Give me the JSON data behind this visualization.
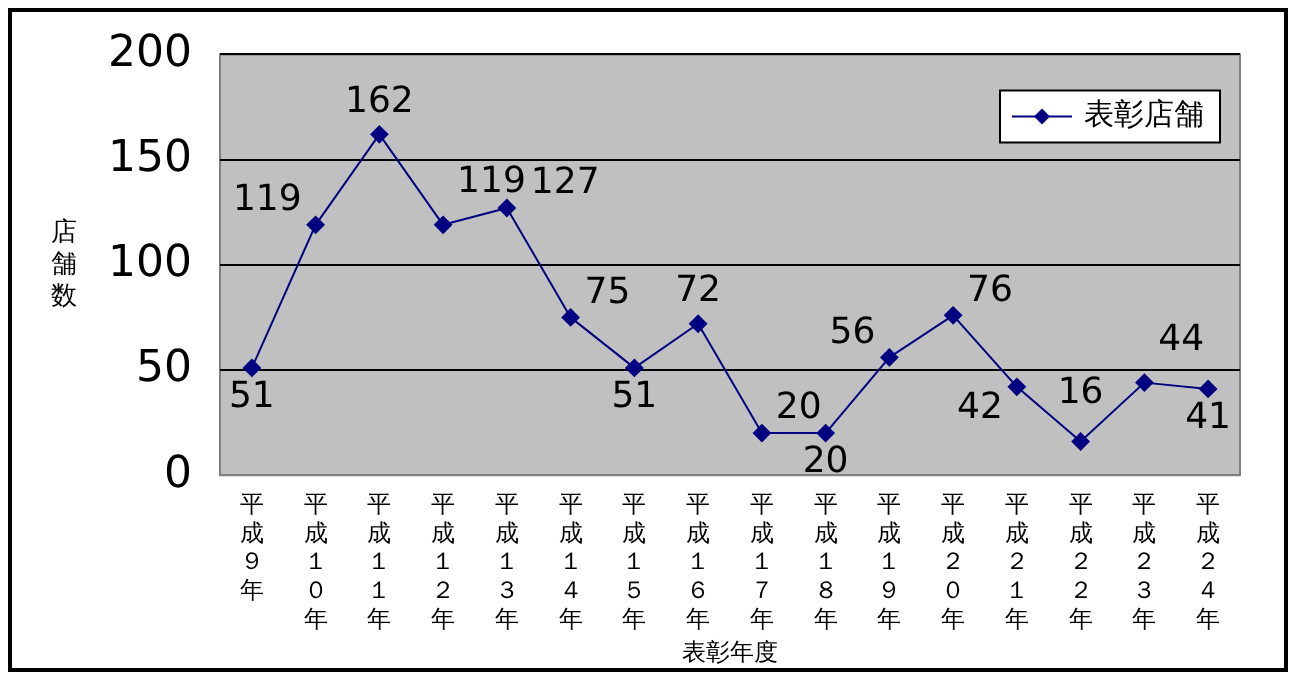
{
  "chart_data": {
    "type": "line",
    "xlabel": "表彰年度",
    "ylabel": "店舗数",
    "categories": [
      "平成９年",
      "平成１０年",
      "平成１１年",
      "平成１２年",
      "平成１３年",
      "平成１４年",
      "平成１５年",
      "平成１６年",
      "平成１７年",
      "平成１８年",
      "平成１９年",
      "平成２０年",
      "平成２１年",
      "平成２２年",
      "平成２３年",
      "平成２４年"
    ],
    "series": [
      {
        "name": "表彰店舗",
        "color": "#000080",
        "values": [
          51,
          119,
          162,
          119,
          127,
          75,
          51,
          72,
          20,
          20,
          56,
          76,
          42,
          16,
          44,
          41
        ]
      }
    ],
    "ylim": [
      0,
      200
    ],
    "yticks": [
      0,
      50,
      100,
      150,
      200
    ],
    "grid": "y",
    "legend": "top right",
    "marker": "diamond",
    "line_style": "solid",
    "data_labels": true
  }
}
